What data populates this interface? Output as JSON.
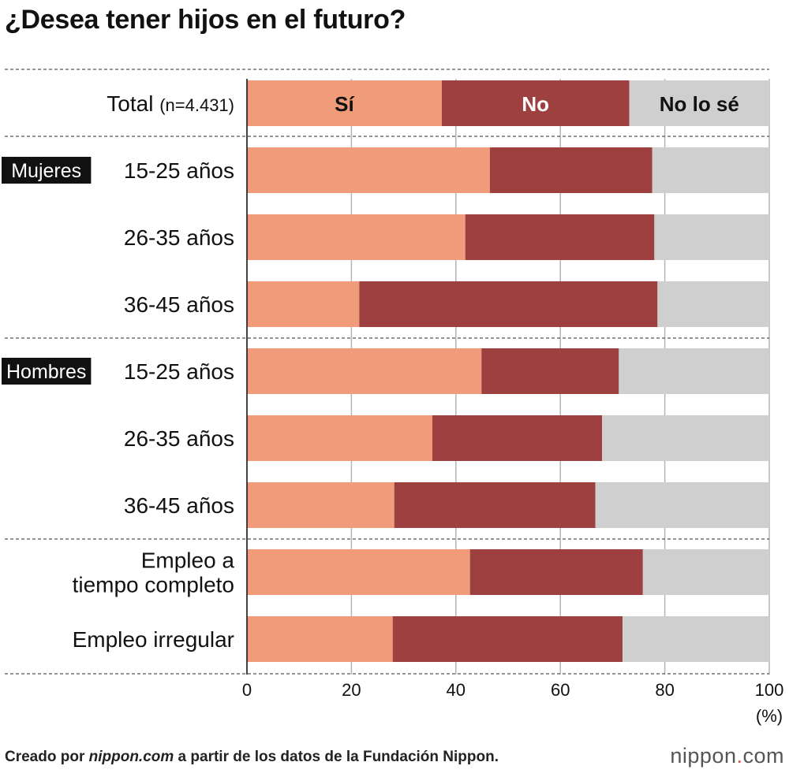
{
  "title": "¿Desea tener hijos en el futuro?",
  "colors": {
    "si": "#f09b7a",
    "no": "#9e4040",
    "nose": "#cfcfcf",
    "grid": "#b5b5b5",
    "badge_bg": "#111111",
    "badge_fg": "#ffffff"
  },
  "chart_data": {
    "type": "bar",
    "orientation": "horizontal",
    "stacked": true,
    "series_names": [
      "Sí",
      "No",
      "No lo sé"
    ],
    "rows": [
      {
        "label": "Total",
        "note": "(n=4.431)",
        "group": "",
        "values": [
          37.3,
          35.9,
          26.8
        ],
        "show_segment_labels": true
      },
      {
        "label": "15-25 años",
        "note": "",
        "group": "Mujeres",
        "values": [
          46.5,
          31.1,
          22.4
        ]
      },
      {
        "label": "26-35 años",
        "note": "",
        "group": "",
        "values": [
          41.8,
          36.2,
          22.0
        ]
      },
      {
        "label": "36-45 años",
        "note": "",
        "group": "",
        "values": [
          21.5,
          57.1,
          21.4
        ]
      },
      {
        "label": "15-25 años",
        "note": "",
        "group": "Hombres",
        "values": [
          44.9,
          26.3,
          28.8
        ]
      },
      {
        "label": "26-35 años",
        "note": "",
        "group": "",
        "values": [
          35.5,
          32.5,
          32.0
        ]
      },
      {
        "label": "36-45 años",
        "note": "",
        "group": "",
        "values": [
          28.2,
          38.5,
          33.3
        ]
      },
      {
        "label": "Empleo a\ntiempo completo",
        "note": "",
        "group": "",
        "values": [
          42.7,
          33.1,
          24.2
        ]
      },
      {
        "label": "Empleo irregular",
        "note": "",
        "group": "",
        "values": [
          27.9,
          44.0,
          28.1
        ]
      }
    ],
    "xlim": [
      0,
      100
    ],
    "xticks": [
      0,
      20,
      40,
      60,
      80,
      100
    ],
    "xunit": "(%)",
    "grid": true
  },
  "footer": {
    "prefix": "Creado por ",
    "site": "nippon.com",
    "suffix": " a partir de los datos de la Fundación Nippon."
  },
  "logo": {
    "main": "nippon",
    "dot": ".",
    "tld": "com"
  }
}
